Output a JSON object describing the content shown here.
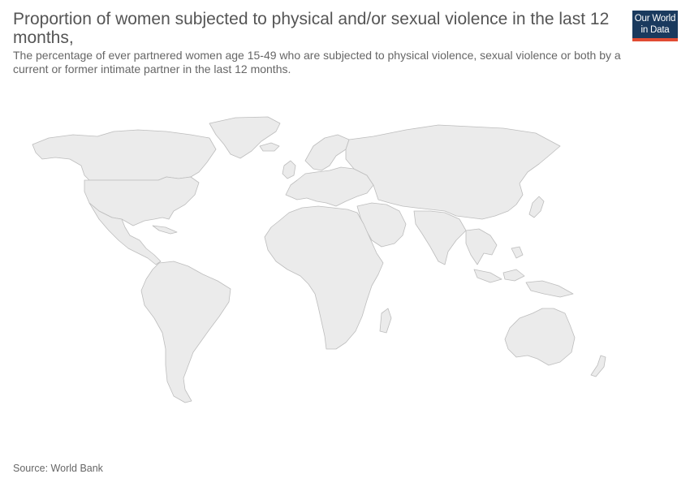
{
  "title": "Proportion of women subjected to physical and/or sexual violence in the last 12 months,",
  "subtitle": "The percentage of ever partnered women age 15-49 who are subjected to physical violence, sexual violence or both by a current or former intimate partner in the last 12 months.",
  "logo": {
    "line1": "Our World",
    "line2": "in Data"
  },
  "source": "Source: World Bank",
  "colors": {
    "land": "#ebebeb",
    "border": "#bdbdbd",
    "logo_bg": "#1a3a5e",
    "logo_accent": "#e14c33"
  },
  "map": {
    "type": "choropleth-world",
    "values_shown": "none"
  }
}
